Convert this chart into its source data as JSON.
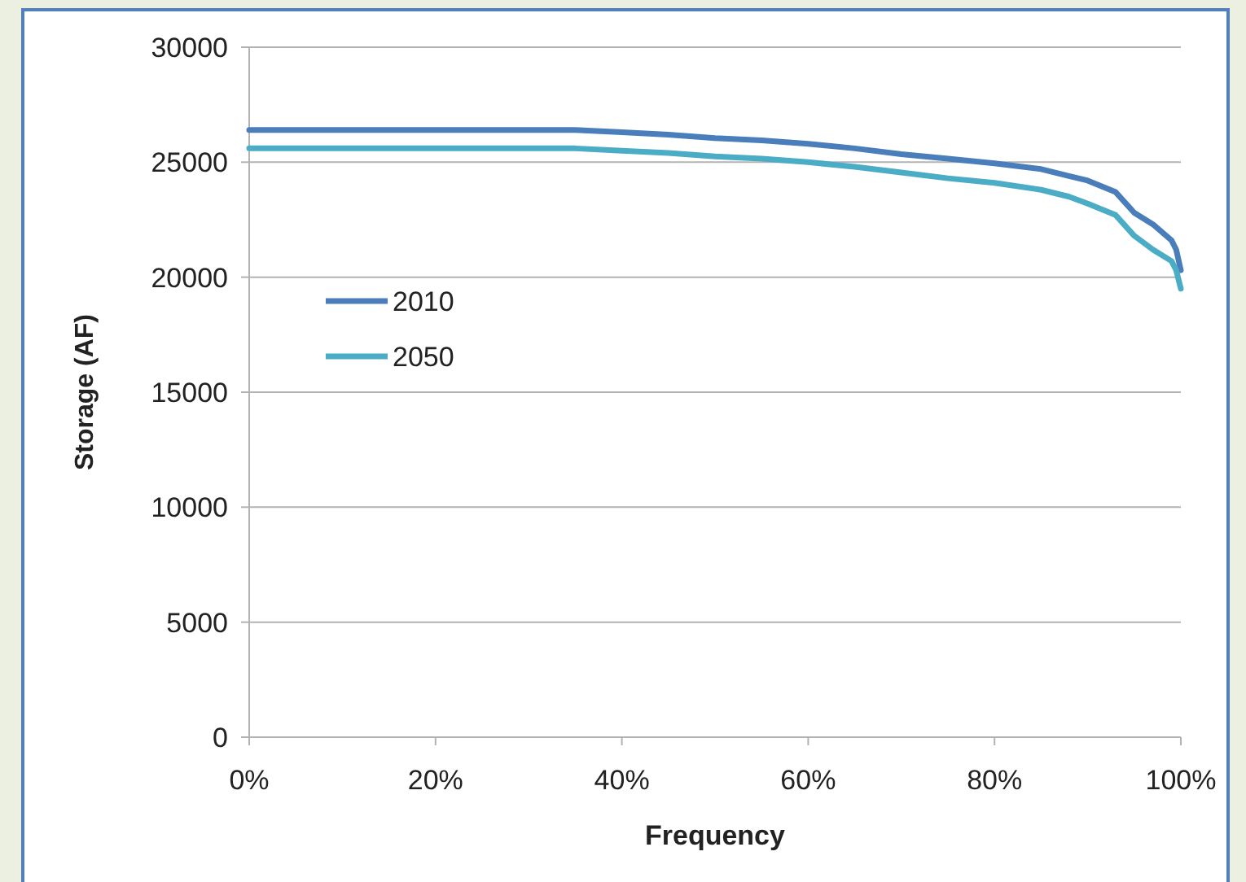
{
  "chart_data": {
    "type": "line",
    "xlabel": "Frequency",
    "ylabel": "Storage (AF)",
    "x": [
      0,
      10,
      20,
      30,
      35,
      40,
      45,
      50,
      55,
      60,
      65,
      70,
      75,
      80,
      85,
      88,
      90,
      93,
      95,
      97,
      99,
      99.5,
      100
    ],
    "series": [
      {
        "name": "2010",
        "color": "#4a7ebb",
        "values": [
          26400,
          26400,
          26400,
          26400,
          26400,
          26300,
          26200,
          26050,
          25950,
          25800,
          25600,
          25350,
          25150,
          24950,
          24700,
          24400,
          24200,
          23700,
          22800,
          22300,
          21600,
          21200,
          20300
        ]
      },
      {
        "name": "2050",
        "color": "#4bacc6",
        "values": [
          25600,
          25600,
          25600,
          25600,
          25600,
          25500,
          25400,
          25250,
          25150,
          25000,
          24800,
          24550,
          24300,
          24100,
          23800,
          23500,
          23200,
          22700,
          21800,
          21200,
          20700,
          20300,
          19500
        ]
      }
    ],
    "xlim": [
      0,
      100
    ],
    "xticks": [
      {
        "value": 0,
        "label": "0%"
      },
      {
        "value": 20,
        "label": "20%"
      },
      {
        "value": 40,
        "label": "40%"
      },
      {
        "value": 60,
        "label": "60%"
      },
      {
        "value": 80,
        "label": "80%"
      },
      {
        "value": 100,
        "label": "100%"
      }
    ],
    "ylim": [
      0,
      30000
    ],
    "yticks": [
      0,
      5000,
      10000,
      15000,
      20000,
      25000,
      30000
    ],
    "grid": "y",
    "legend": "left",
    "line_style": "solid"
  }
}
